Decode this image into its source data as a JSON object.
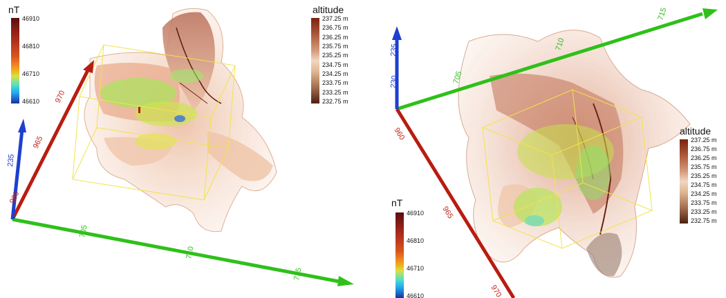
{
  "left_view": {
    "nt_legend": {
      "title": "nT",
      "ticks": [
        "46910",
        "46810",
        "46710",
        "46610"
      ]
    },
    "altitude_legend": {
      "title": "altitude",
      "ticks": [
        "237.25 m",
        "236.75 m",
        "236.25 m",
        "235.75 m",
        "235.25 m",
        "234.75 m",
        "234.25 m",
        "233.75 m",
        "233.25 m",
        "232.75 m"
      ]
    },
    "axis_labels": {
      "red": [
        "970",
        "965",
        "960"
      ],
      "green": [
        "705",
        "710",
        "715"
      ],
      "blue": [
        "235"
      ]
    }
  },
  "right_view": {
    "nt_legend": {
      "title": "nT",
      "ticks": [
        "46910",
        "46810",
        "46710",
        "46610"
      ]
    },
    "altitude_legend": {
      "title": "altitude",
      "ticks": [
        "237.25 m",
        "236.75 m",
        "236.25 m",
        "235.75 m",
        "235.25 m",
        "234.75 m",
        "234.25 m",
        "233.75 m",
        "233.25 m",
        "232.75 m"
      ]
    },
    "axis_labels": {
      "red": [
        "960",
        "965",
        "970"
      ],
      "green": [
        "705",
        "710",
        "715"
      ],
      "blue": [
        "235",
        "230"
      ]
    }
  },
  "colors": {
    "axis_red": "#b81d10",
    "axis_green": "#2fc01a",
    "axis_blue": "#1f3fcf",
    "bounding_box": "#f2e34a",
    "terrain_light": "#f1c9ad",
    "terrain_dark": "#8b3a22"
  }
}
